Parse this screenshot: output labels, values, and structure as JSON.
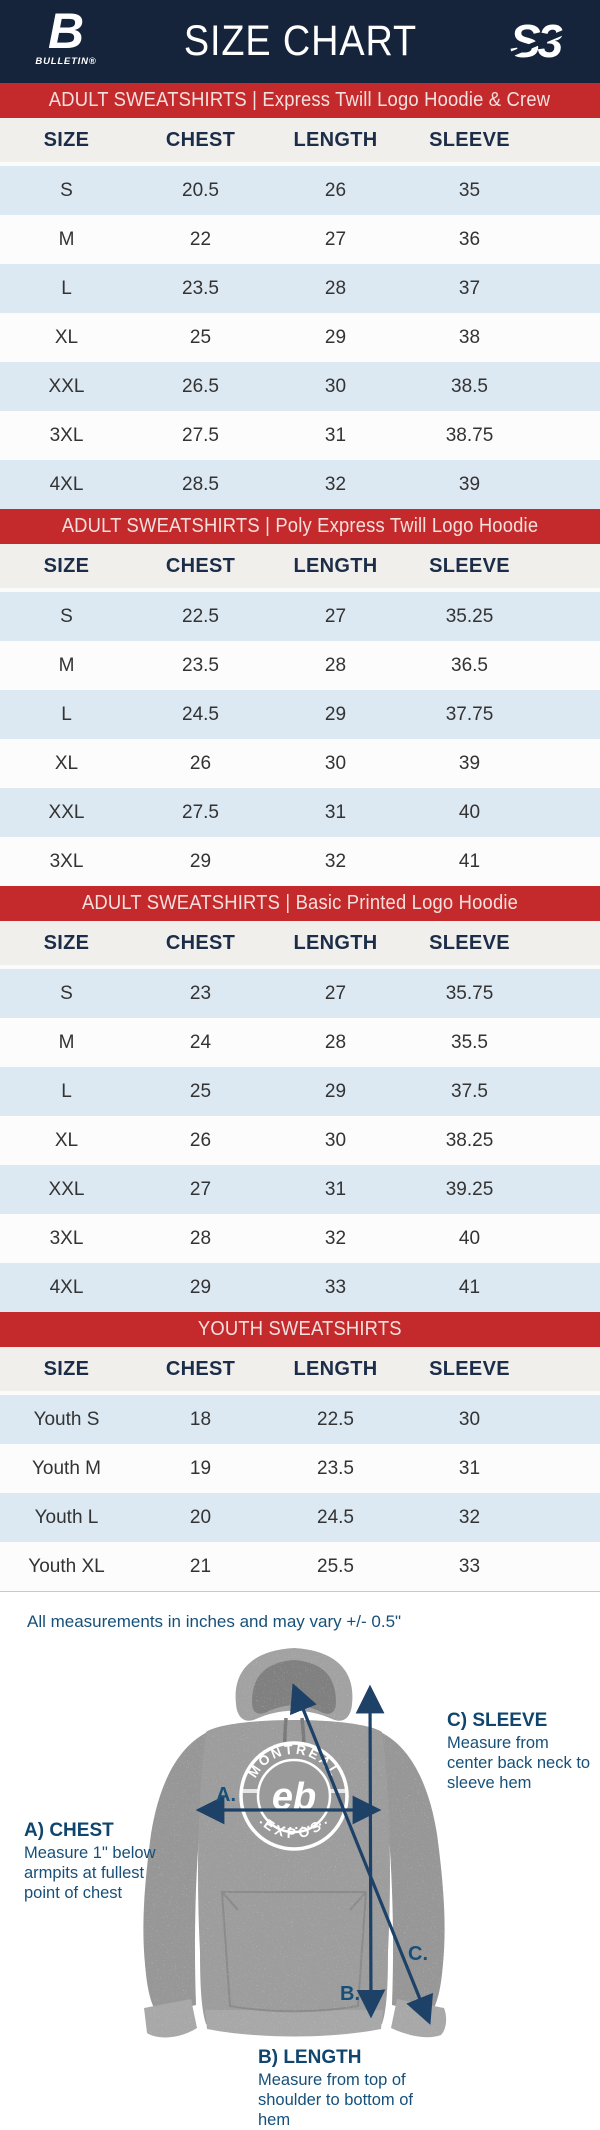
{
  "header": {
    "title": "SIZE CHART",
    "brand_left": {
      "mark": "B",
      "name": "BULLETIN®"
    },
    "brand_right": {
      "mark": "S3"
    }
  },
  "table": {
    "columns": [
      "SIZE",
      "CHEST",
      "LENGTH",
      "SLEEVE"
    ]
  },
  "sections": [
    {
      "banner": "ADULT SWEATSHIRTS | Express Twill Logo Hoodie & Crew",
      "rows": [
        [
          "S",
          "20.5",
          "26",
          "35"
        ],
        [
          "M",
          "22",
          "27",
          "36"
        ],
        [
          "L",
          "23.5",
          "28",
          "37"
        ],
        [
          "XL",
          "25",
          "29",
          "38"
        ],
        [
          "XXL",
          "26.5",
          "30",
          "38.5"
        ],
        [
          "3XL",
          "27.5",
          "31",
          "38.75"
        ],
        [
          "4XL",
          "28.5",
          "32",
          "39"
        ]
      ]
    },
    {
      "banner": "ADULT SWEATSHIRTS | Poly Express Twill Logo Hoodie",
      "rows": [
        [
          "S",
          "22.5",
          "27",
          "35.25"
        ],
        [
          "M",
          "23.5",
          "28",
          "36.5"
        ],
        [
          "L",
          "24.5",
          "29",
          "37.75"
        ],
        [
          "XL",
          "26",
          "30",
          "39"
        ],
        [
          "XXL",
          "27.5",
          "31",
          "40"
        ],
        [
          "3XL",
          "29",
          "32",
          "41"
        ]
      ]
    },
    {
      "banner": "ADULT SWEATSHIRTS | Basic Printed Logo Hoodie",
      "rows": [
        [
          "S",
          "23",
          "27",
          "35.75"
        ],
        [
          "M",
          "24",
          "28",
          "35.5"
        ],
        [
          "L",
          "25",
          "29",
          "37.5"
        ],
        [
          "XL",
          "26",
          "30",
          "38.25"
        ],
        [
          "XXL",
          "27",
          "31",
          "39.25"
        ],
        [
          "3XL",
          "28",
          "32",
          "40"
        ],
        [
          "4XL",
          "29",
          "33",
          "41"
        ]
      ]
    },
    {
      "banner": "YOUTH SWEATSHIRTS",
      "rows": [
        [
          "Youth S",
          "18",
          "22.5",
          "30"
        ],
        [
          "Youth M",
          "19",
          "23.5",
          "31"
        ],
        [
          "Youth L",
          "20",
          "24.5",
          "32"
        ],
        [
          "Youth XL",
          "21",
          "25.5",
          "33"
        ]
      ]
    }
  ],
  "footer": {
    "note": "All measurements in inches and may vary +/- 0.5\"",
    "annotations": {
      "chest": {
        "label": "A.",
        "title": "A) CHEST",
        "desc": "Measure 1\" below armpits at fullest point of chest"
      },
      "length": {
        "label": "B.",
        "title": "B) LENGTH",
        "desc": "Measure from top of shoulder to bottom of hem"
      },
      "sleeve": {
        "label": "C.",
        "title": "C) SLEEVE",
        "desc": "Measure from center back neck to sleeve hem"
      }
    },
    "shirt_logo": {
      "top": "MONTREAL",
      "bottom": "EXPOS",
      "center": "eb"
    }
  },
  "colors": {
    "navy": "#15243B",
    "red": "#C42A2B",
    "row_blue": "#DCE8F2",
    "row_white": "#FCFCFC",
    "header_row_bg": "#F0EFEB",
    "header_text": "#1C2D49",
    "cell_text": "#333333",
    "annotation_text": "#16507A",
    "arrow": "#1E4167",
    "hoodie_gray": "#9D9D9D"
  }
}
